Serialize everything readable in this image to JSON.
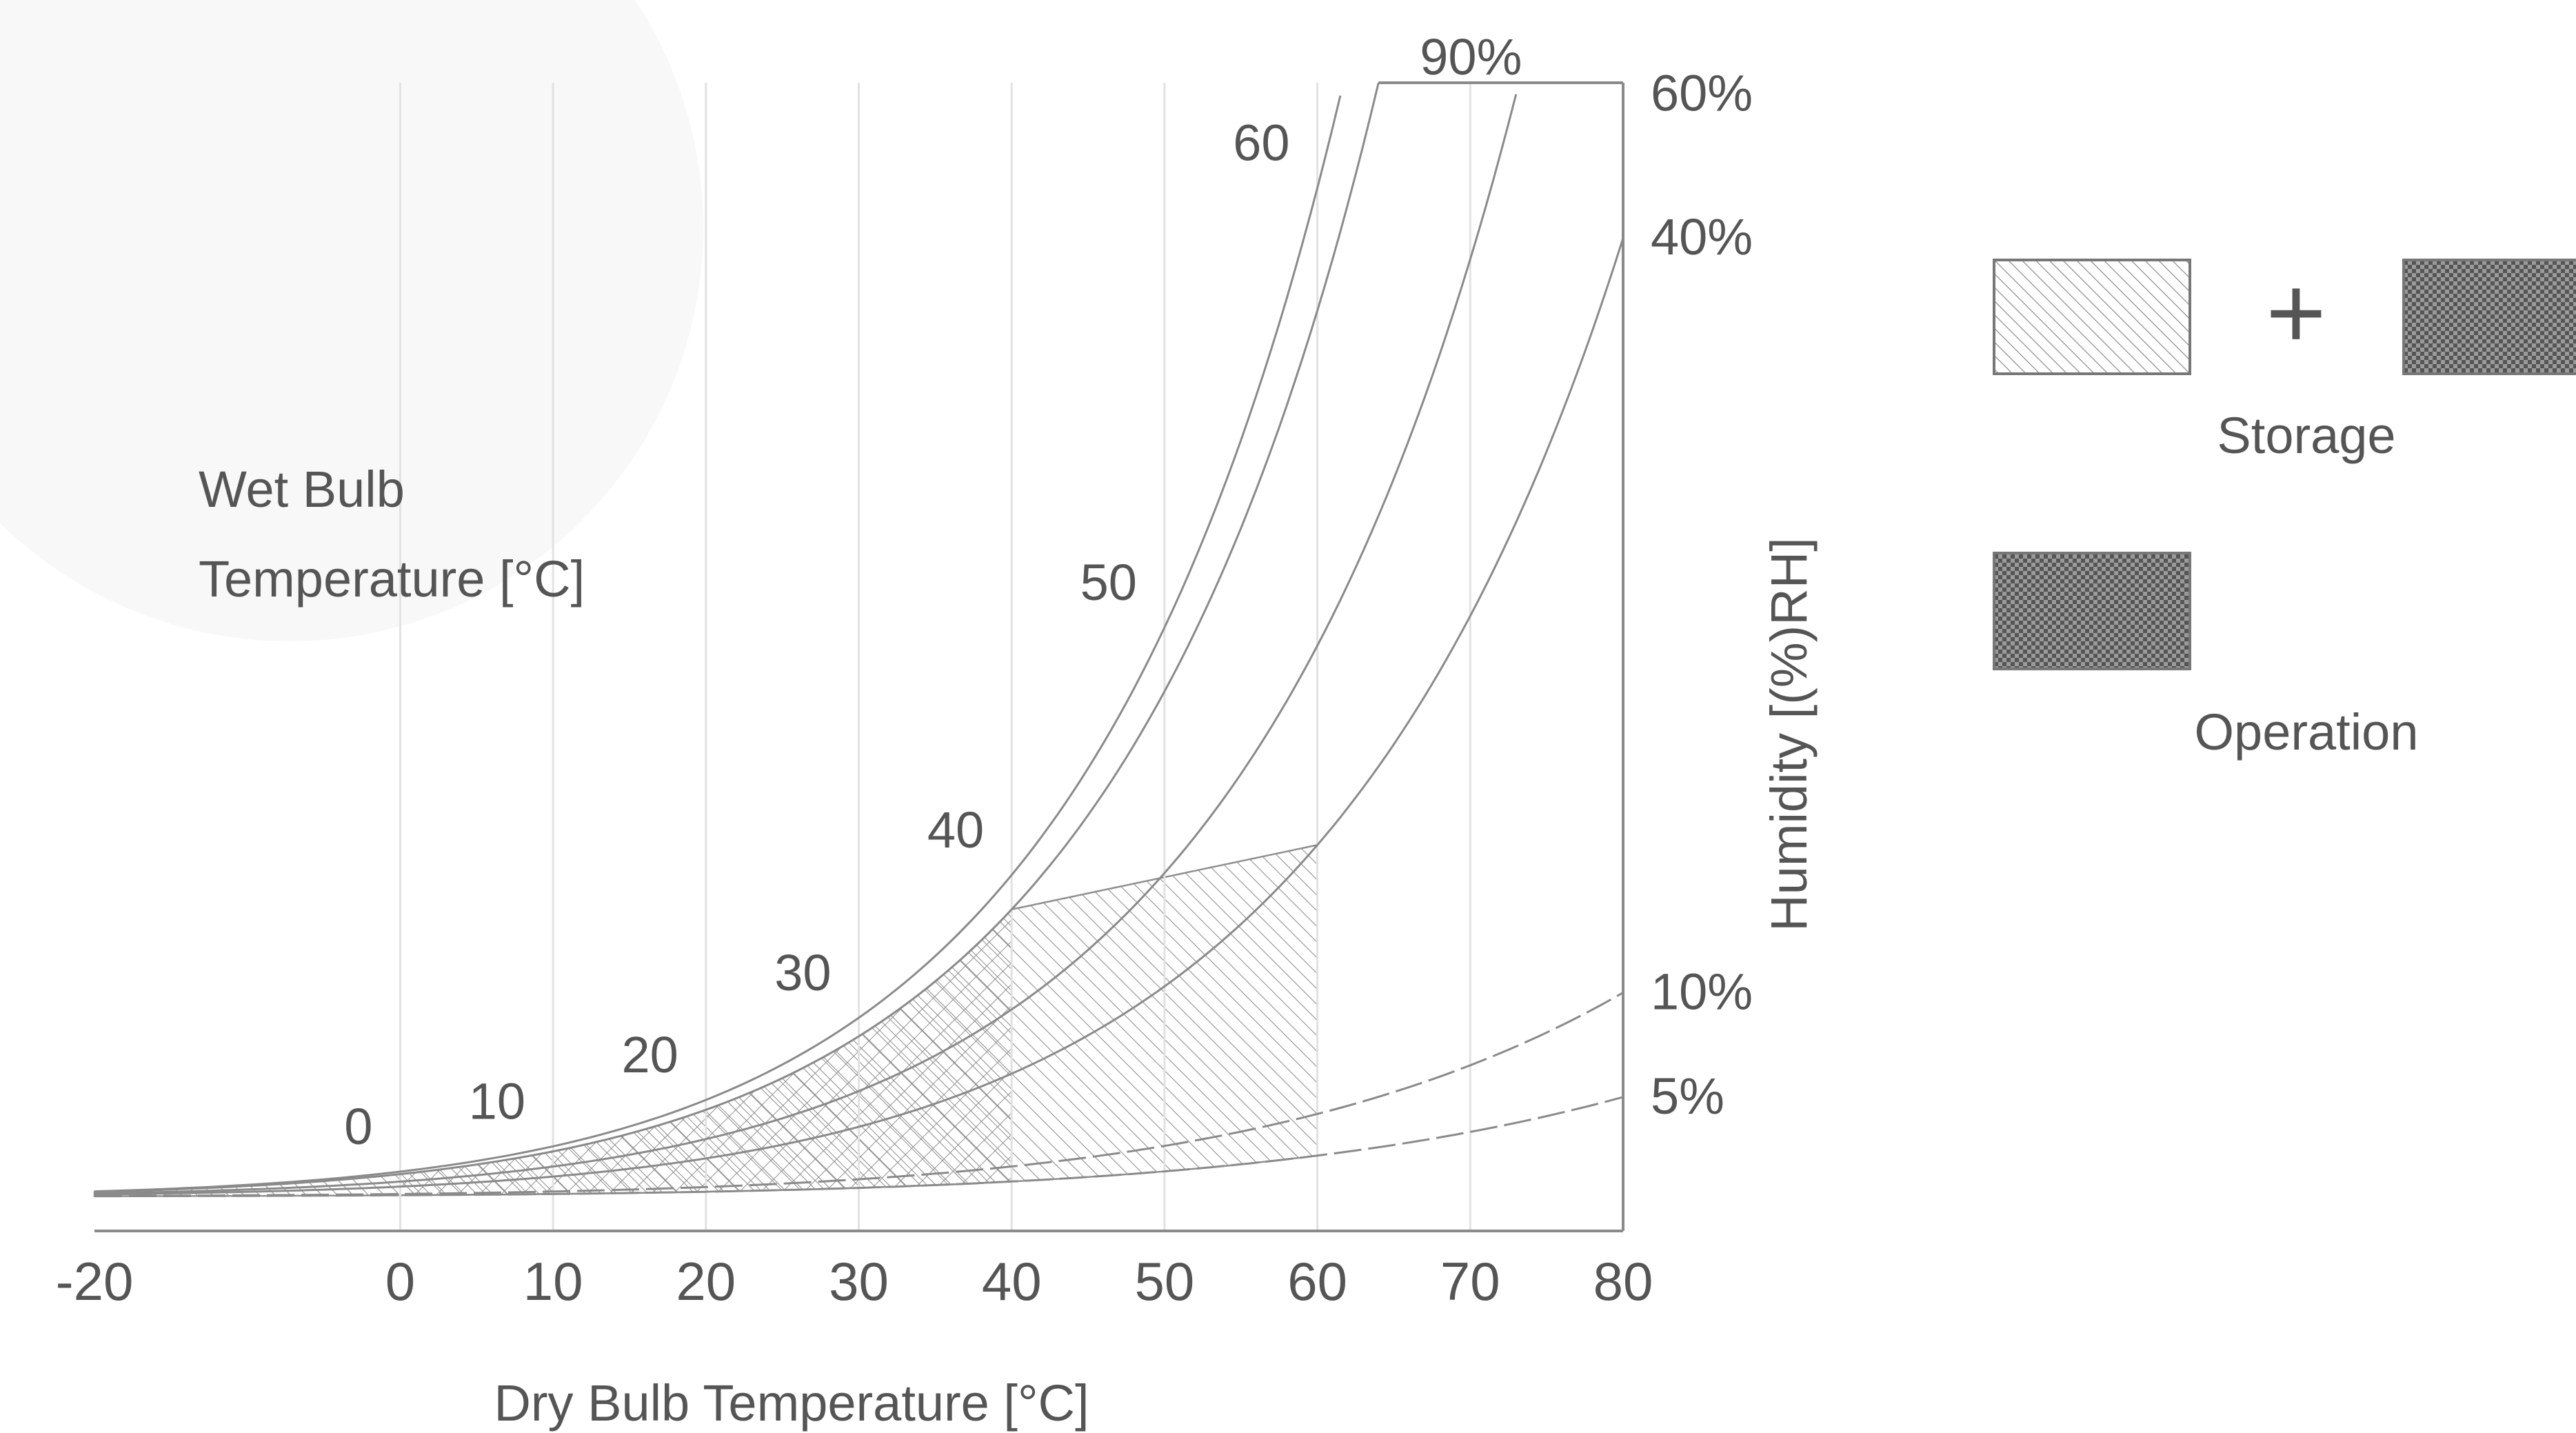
{
  "chart_data": {
    "type": "line",
    "xlabel": "Dry Bulb Temperature [°C]",
    "ylabel": "Humidity [(%)RH]",
    "wet_bulb_label": [
      "Wet Bulb",
      "Temperature [°C]"
    ],
    "xlim": [
      -20,
      80
    ],
    "x_ticks": [
      "-20",
      "0",
      "10",
      "20",
      "30",
      "40",
      "50",
      "60",
      "70",
      "80"
    ],
    "x_tick_values": [
      -20,
      0,
      10,
      20,
      30,
      40,
      50,
      60,
      70,
      80
    ],
    "wet_bulb_ticks": [
      {
        "label": "0",
        "x": 0
      },
      {
        "label": "10",
        "x": 10
      },
      {
        "label": "20",
        "x": 20
      },
      {
        "label": "30",
        "x": 30
      },
      {
        "label": "40",
        "x": 40
      },
      {
        "label": "50",
        "x": 50
      },
      {
        "label": "60",
        "x": 60
      }
    ],
    "series": [
      {
        "name": "90%",
        "rh": 0.9
      },
      {
        "name": "60%",
        "rh": 0.6
      },
      {
        "name": "40%",
        "rh": 0.4
      },
      {
        "name": "10%",
        "rh": 0.1
      },
      {
        "name": "5%",
        "rh": 0.05
      }
    ],
    "regions": [
      {
        "name": "Storage",
        "pattern": "diagonal-hatch",
        "dry_bulb_range": [
          -20,
          60
        ],
        "rh_range": [
          0.05,
          0.9
        ]
      },
      {
        "name": "Operation",
        "pattern": "cross-hatch",
        "dry_bulb_range": [
          0,
          40
        ],
        "rh_range": [
          0.05,
          0.9
        ]
      }
    ],
    "legend": {
      "placement": "right",
      "storage_label": "Storage",
      "operation_label": "Operation",
      "plus": "+"
    },
    "grid": true
  },
  "colors": {
    "line": "#8a8a8a",
    "text": "#555555",
    "hatch": "#888888",
    "watermark": "#e6e6e6"
  }
}
